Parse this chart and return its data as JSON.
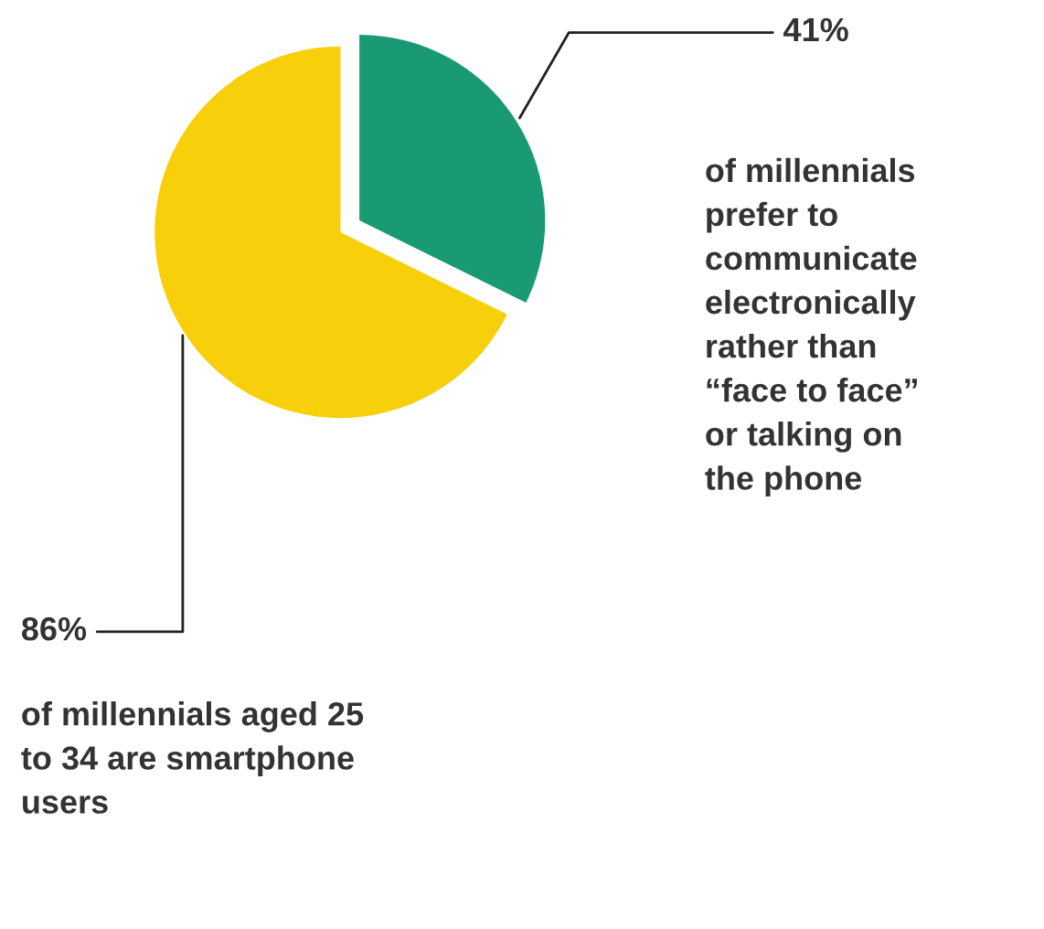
{
  "chart_data": {
    "type": "pie",
    "categories": [
      null,
      null
    ],
    "values": [
      41,
      86
    ],
    "colors": [
      "#1a9a74",
      "#f7cf0a"
    ],
    "value_labels": [
      "41%",
      "86%"
    ],
    "annotations": [
      "of millennials\nprefer to\ncommunicate\nelectronically\nrather than\n“face to face”\nor talking on\nthe phone",
      "of millennials aged 25\nto 34 are smartphone\nusers"
    ]
  }
}
